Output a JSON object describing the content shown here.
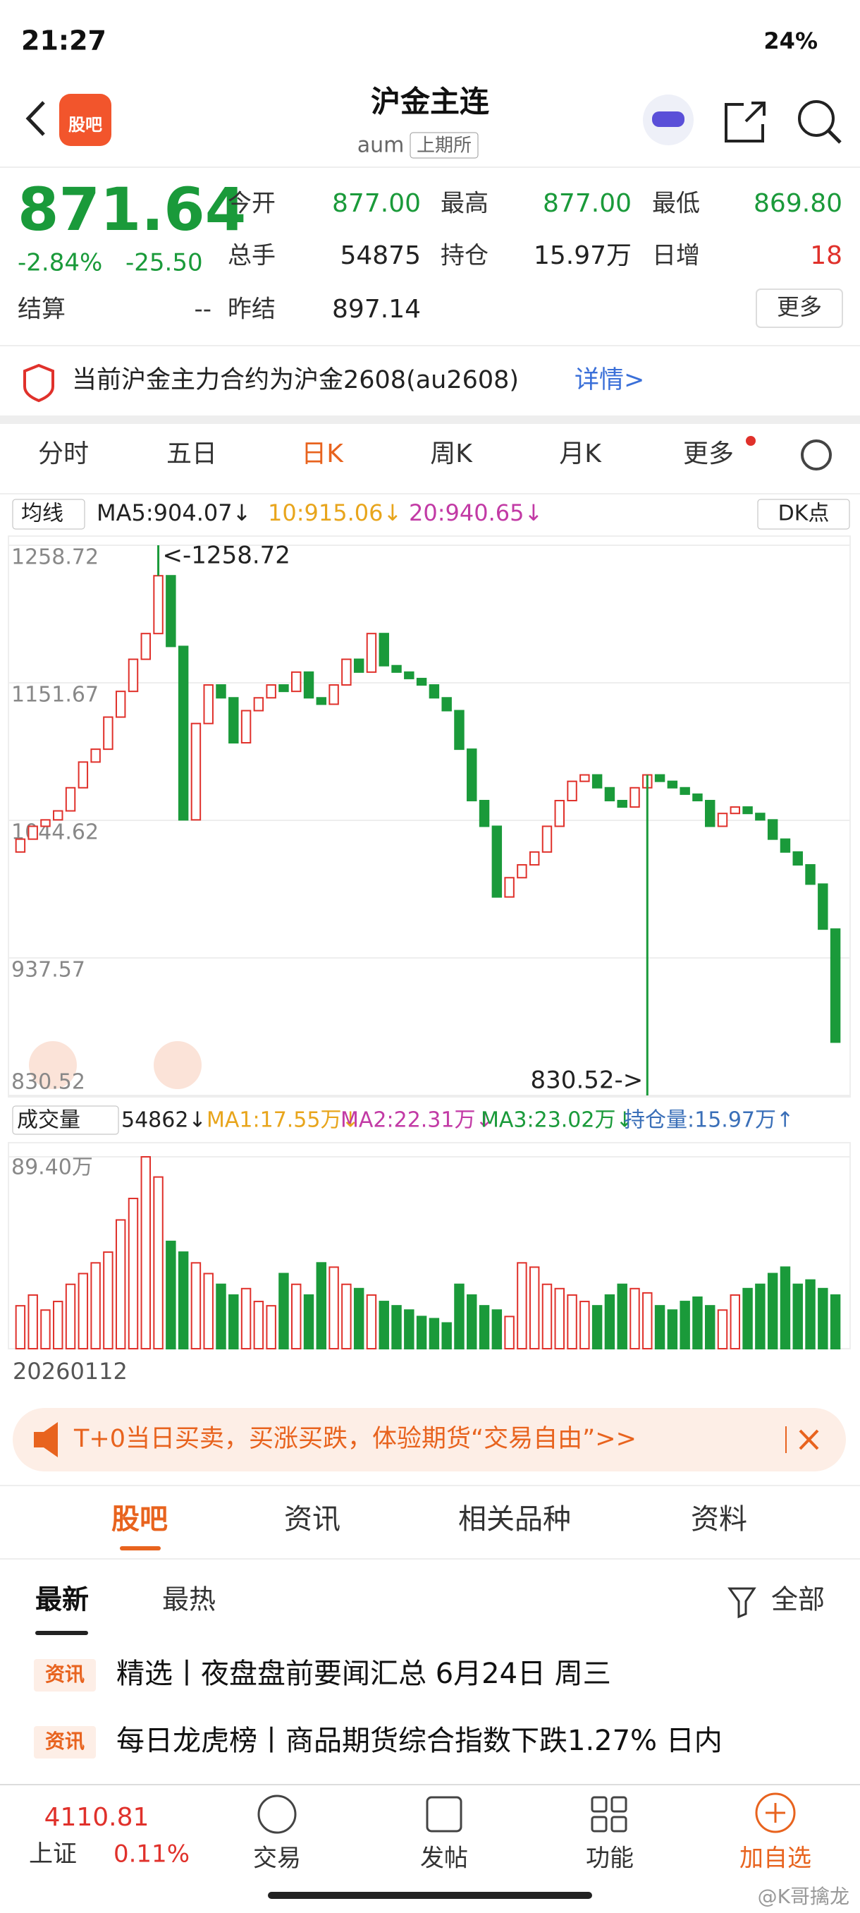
{
  "status_bar": {
    "time": "21:27",
    "battery": "24%"
  },
  "header": {
    "app_icon": "股吧",
    "title": "沪金主连",
    "code": "aum",
    "exchange": "上期所"
  },
  "quote": {
    "price": "871.64",
    "change_pct": "-2.84%",
    "change": "-25.50",
    "settle_label": "结算",
    "settle": "--",
    "open_label": "今开",
    "open": "877.00",
    "high_label": "最高",
    "high": "877.00",
    "low_label": "最低",
    "low": "869.80",
    "volume_label": "总手",
    "volume": "54875",
    "oi_label": "持仓",
    "oi": "15.97万",
    "oi_change_label": "日增",
    "oi_change": "18",
    "prev_settle_label": "昨结",
    "prev_settle": "897.14",
    "more": "更多"
  },
  "notice": {
    "text": "当前沪金主力合约为沪金2608(au2608)",
    "link": "详情>"
  },
  "period_tabs": [
    "分时",
    "五日",
    "日K",
    "周K",
    "月K",
    "更多"
  ],
  "ma_legend": {
    "selector": "均线",
    "ma5": "MA5:904.07↓",
    "ma10": "10:915.06↓",
    "ma20": "20:940.65↓",
    "dk": "DK点"
  },
  "kline": {
    "ylim": [
      830.52,
      1258.72
    ],
    "yticks": [
      830.52,
      937.57,
      1044.62,
      1151.67,
      1258.72
    ],
    "high": 1258.72,
    "low": 830.52,
    "high_label": "<-1258.72",
    "low_label": "830.52->",
    "closes": [
      1030,
      1040,
      1045,
      1052,
      1070,
      1090,
      1100,
      1125,
      1145,
      1170,
      1190,
      1235,
      1180,
      1045,
      1120,
      1150,
      1140,
      1105,
      1130,
      1140,
      1150,
      1145,
      1160,
      1140,
      1135,
      1150,
      1170,
      1160,
      1190,
      1165,
      1160,
      1155,
      1150,
      1140,
      1130,
      1100,
      1060,
      1040,
      985,
      1000,
      1010,
      1020,
      1040,
      1060,
      1075,
      1080,
      1070,
      1060,
      1055,
      1070,
      1080,
      1075,
      1070,
      1065,
      1060,
      1040,
      1050,
      1055,
      1050,
      1045,
      1030,
      1020,
      1010,
      995,
      960,
      872
    ]
  },
  "volume": {
    "selector": "成交量",
    "last": "54862↓",
    "ma1": "MA1:17.55万↓",
    "ma2": "MA2:22.31万↓",
    "ma3": "MA3:23.02万↓",
    "oi": "持仓量:15.97万↑",
    "ylim": [
      0,
      89.4
    ],
    "yticks": [
      {
        "value": 89.4,
        "label": "89.40万"
      }
    ],
    "values": [
      20,
      25,
      18,
      22,
      30,
      35,
      40,
      45,
      60,
      70,
      89.4,
      80,
      50,
      45,
      40,
      35,
      30,
      25,
      28,
      22,
      20,
      35,
      30,
      25,
      40,
      38,
      30,
      28,
      25,
      22,
      20,
      18,
      15,
      14,
      12,
      30,
      25,
      20,
      18,
      15,
      40,
      38,
      30,
      28,
      25,
      22,
      20,
      25,
      30,
      28,
      26,
      20,
      18,
      22,
      24,
      20,
      18,
      25,
      28,
      30,
      35,
      38,
      30,
      32,
      28,
      25
    ]
  },
  "date_label": "20260112",
  "banner": "T+0当日买卖，买涨买跌，体验期货“交易自由”>>",
  "section_tabs": [
    "股吧",
    "资讯",
    "相关品种",
    "资料"
  ],
  "filter": {
    "latest": "最新",
    "hot": "最热",
    "all": "全部"
  },
  "news": [
    {
      "tag": "资讯",
      "title": "精选丨夜盘盘前要闻汇总 6月24日 周三"
    },
    {
      "tag": "资讯",
      "title": "每日龙虎榜丨商品期货综合指数下跌1.27% 日内"
    }
  ],
  "bottom_nav": {
    "index_value": "4110.81",
    "index_name": "上证",
    "index_change": "0.11%",
    "trade": "交易",
    "post": "发帖",
    "tools": "功能",
    "add": "加自选"
  },
  "watermark": "@K哥擒龙"
}
